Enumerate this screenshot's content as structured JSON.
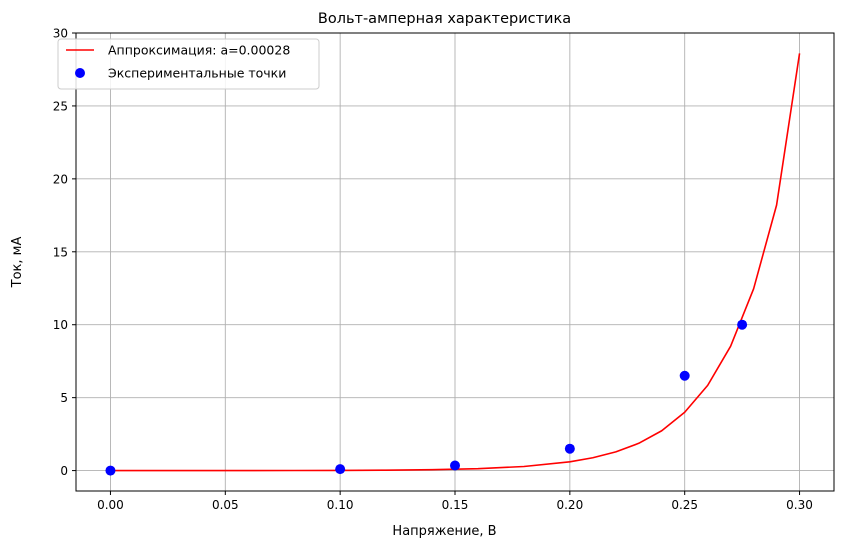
{
  "chart_data": {
    "type": "line",
    "title": "Вольт-амперная характеристика",
    "xlabel": "Напряжение, В",
    "ylabel": "Ток, мА",
    "xlim": [
      -0.015,
      0.315
    ],
    "ylim": [
      -1.4,
      30
    ],
    "grid": true,
    "legend_position": "top-left",
    "x_ticks": [
      0.0,
      0.05,
      0.1,
      0.15,
      0.2,
      0.25,
      0.3
    ],
    "x_tick_labels": [
      "0.00",
      "0.05",
      "0.10",
      "0.15",
      "0.20",
      "0.25",
      "0.30"
    ],
    "y_ticks": [
      0,
      5,
      10,
      15,
      20,
      25,
      30
    ],
    "y_tick_labels": [
      "0",
      "5",
      "10",
      "15",
      "20",
      "25",
      "30"
    ],
    "series": [
      {
        "name": "Аппроксимация: a=0.00028",
        "kind": "line",
        "color": "#ff0000",
        "x": [
          0.0,
          0.02,
          0.04,
          0.06,
          0.08,
          0.1,
          0.12,
          0.14,
          0.16,
          0.18,
          0.2,
          0.21,
          0.22,
          0.23,
          0.24,
          0.25,
          0.26,
          0.27,
          0.28,
          0.29,
          0.3
        ],
        "y": [
          0.0003,
          0.0006,
          0.0013,
          0.0028,
          0.006,
          0.013,
          0.028,
          0.061,
          0.13,
          0.28,
          0.6,
          0.88,
          1.28,
          1.87,
          2.73,
          4.0,
          5.84,
          8.53,
          12.46,
          18.2,
          28.6
        ]
      },
      {
        "name": "Экспериментальные точки",
        "kind": "scatter",
        "color": "#0000ff",
        "x": [
          0.0,
          0.1,
          0.15,
          0.2,
          0.25,
          0.275
        ],
        "y": [
          0.0,
          0.1,
          0.35,
          1.5,
          6.5,
          10.0
        ]
      }
    ]
  }
}
